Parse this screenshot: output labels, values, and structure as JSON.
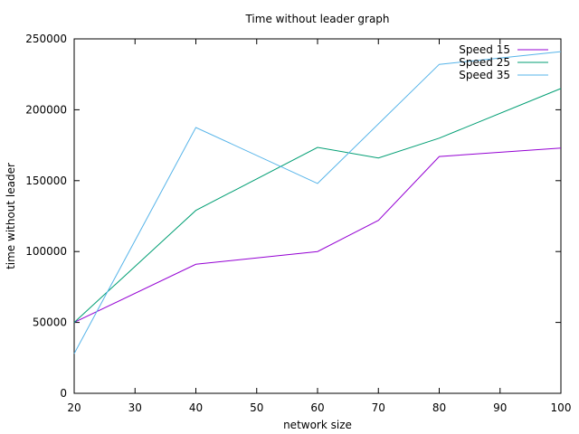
{
  "chart_data": {
    "type": "line",
    "title": "Time without leader graph",
    "xlabel": "network size",
    "ylabel": "time without leader",
    "xlim": [
      20,
      100
    ],
    "ylim": [
      0,
      250000
    ],
    "xticks": [
      20,
      30,
      40,
      50,
      60,
      70,
      80,
      90,
      100
    ],
    "yticks": [
      0,
      50000,
      100000,
      150000,
      200000,
      250000
    ],
    "grid": false,
    "legend_position": "top-right",
    "series": [
      {
        "name": "Speed 15",
        "color": "#9400d3",
        "points": [
          [
            20,
            50000
          ],
          [
            40,
            91000
          ],
          [
            60,
            100000
          ],
          [
            70,
            122000
          ],
          [
            80,
            167000
          ],
          [
            100,
            173000
          ]
        ]
      },
      {
        "name": "Speed 25",
        "color": "#009e73",
        "points": [
          [
            20,
            50000
          ],
          [
            40,
            129000
          ],
          [
            60,
            173500
          ],
          [
            70,
            166000
          ],
          [
            80,
            180000
          ],
          [
            100,
            215000
          ]
        ]
      },
      {
        "name": "Speed 35",
        "color": "#56b4e9",
        "points": [
          [
            20,
            28000
          ],
          [
            40,
            187500
          ],
          [
            60,
            148000
          ],
          [
            80,
            232000
          ],
          [
            100,
            241000
          ]
        ]
      }
    ]
  }
}
